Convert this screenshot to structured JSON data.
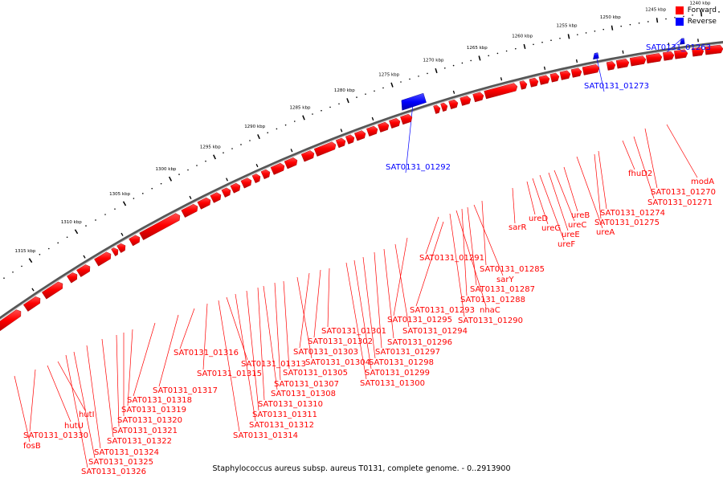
{
  "legend": {
    "forward_label": "Forward",
    "reverse_label": "Reverse",
    "forward_color": "#ff0000",
    "reverse_color": "#0000ff"
  },
  "footer": {
    "caption": "Staphylococcus aureus subsp. aureus T0131, complete genome. - 0..2913900"
  },
  "scale": {
    "unit": "kbp",
    "ticks": [
      1240,
      1245,
      1250,
      1255,
      1260,
      1265,
      1270,
      1275,
      1280,
      1285,
      1290,
      1295,
      1300,
      1305,
      1310,
      1315
    ]
  },
  "genes_reverse": [
    "SAT0131_01263",
    "SAT0131_01273",
    "SAT0131_01292"
  ],
  "genes_forward": [
    "modA",
    "SAT0131_01270",
    "SAT0131_01271",
    "fhuD2",
    "SAT0131_01274",
    "SAT0131_01275",
    "ureA",
    "ureB",
    "ureC",
    "ureE",
    "ureF",
    "ureG",
    "ureD",
    "sarR",
    "SAT0131_01285",
    "sarY",
    "SAT0131_01287",
    "SAT0131_01288",
    "nhaC",
    "SAT0131_01290",
    "SAT0131_01291",
    "SAT0131_01293",
    "SAT0131_01295",
    "SAT0131_01294",
    "SAT0131_01296",
    "SAT0131_01297",
    "SAT0131_01298",
    "SAT0131_01299",
    "SAT0131_01300",
    "SAT0131_01301",
    "SAT0131_01302",
    "SAT0131_01303",
    "SAT0131_01304",
    "SAT0131_01305",
    "SAT0131_01307",
    "SAT0131_01308",
    "SAT0131_01310",
    "SAT0131_01311",
    "SAT0131_01312",
    "SAT0131_01313",
    "SAT0131_01314",
    "SAT0131_01315",
    "SAT0131_01316",
    "SAT0131_01317",
    "SAT0131_01318",
    "SAT0131_01319",
    "SAT0131_01320",
    "SAT0131_01321",
    "SAT0131_01322",
    "SAT0131_01324",
    "SAT0131_01325",
    "SAT0131_01326",
    "hutI",
    "hutU",
    "SAT0131_01330",
    "fosB"
  ]
}
